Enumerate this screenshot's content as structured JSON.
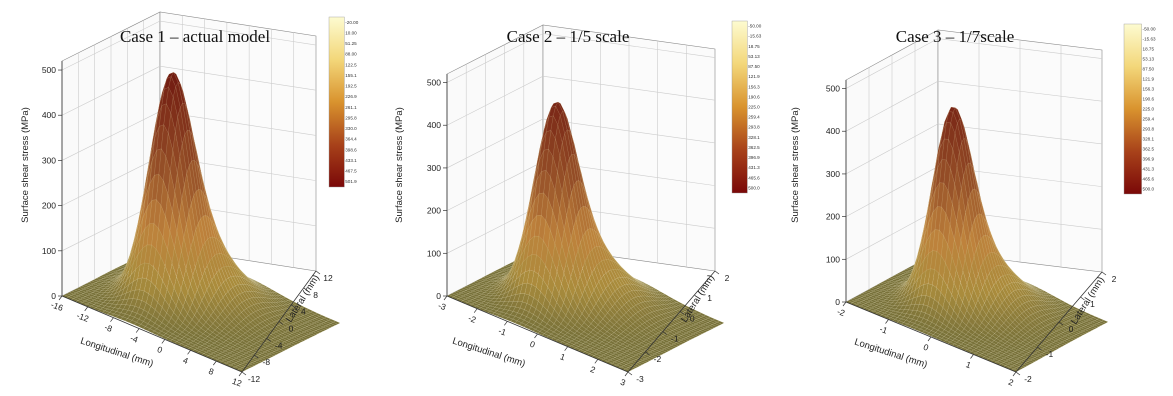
{
  "colors": {
    "floor": "#77713a",
    "peak": "#6e160f",
    "colorbar_light": "#fdfbd0",
    "colorbar_dark": "#7a0808"
  },
  "chart_data": [
    {
      "type": "surface",
      "title": "Case 1 – actual model",
      "zlabel": "Surface shear stress (MPa)",
      "xlabel": "Longitudinal (mm)",
      "ylabel": "Lateral (mm)",
      "z_ticks": [
        "0",
        "100",
        "200",
        "300",
        "400",
        "500"
      ],
      "zlim": [
        0,
        520
      ],
      "x_ticks": [
        "-16",
        "-12",
        "-8",
        "-4",
        "0",
        "4",
        "8",
        "12"
      ],
      "y_ticks": [
        "-12",
        "-8",
        "-4",
        "0",
        "4",
        "8",
        "12"
      ],
      "xlim": [
        -16,
        12
      ],
      "ylim": [
        -12,
        12
      ],
      "peak_value": 510,
      "colorbar_labels": [
        "-20.00",
        "10.00",
        "51.25",
        "88.00",
        "122.5",
        "155.1",
        "192.5",
        "226.9",
        "261.1",
        "295.8",
        "330.0",
        "364.4",
        "398.6",
        "433.1",
        "467.5",
        "501.9"
      ]
    },
    {
      "type": "surface",
      "title": "Case 2 – 1/5 scale",
      "zlabel": "Surface shear stress (MPa)",
      "xlabel": "Longitudinal (mm)",
      "ylabel": "Lateral (mm)",
      "z_ticks": [
        "0",
        "100",
        "200",
        "300",
        "400",
        "500"
      ],
      "zlim": [
        0,
        520
      ],
      "x_ticks": [
        "-3",
        "-2",
        "-1",
        "0",
        "1",
        "2",
        "3"
      ],
      "y_ticks": [
        "-3",
        "-2",
        "-1",
        "0",
        "1",
        "2"
      ],
      "xlim": [
        -3,
        3
      ],
      "ylim": [
        -3,
        2
      ],
      "peak_value": 470,
      "colorbar_labels": [
        "-50.00",
        "-15.63",
        "18.75",
        "53.13",
        "87.50",
        "121.9",
        "156.3",
        "190.6",
        "225.0",
        "259.4",
        "293.8",
        "328.1",
        "362.5",
        "396.9",
        "431.3",
        "465.6",
        "500.0"
      ]
    },
    {
      "type": "surface",
      "title": "Case 3 – 1/7scale",
      "zlabel": "Surface shear stress (MPa)",
      "xlabel": "Longitudinal (mm)",
      "ylabel": "Lateral (mm)",
      "z_ticks": [
        "0",
        "100",
        "200",
        "300",
        "400",
        "500"
      ],
      "zlim": [
        0,
        520
      ],
      "x_ticks": [
        "-2",
        "-1",
        "0",
        "1",
        "2"
      ],
      "y_ticks": [
        "-2",
        "-1",
        "0",
        "1",
        "2"
      ],
      "xlim": [
        -2,
        2
      ],
      "ylim": [
        -2,
        2
      ],
      "peak_value": 470,
      "colorbar_labels": [
        "-50.00",
        "-15.63",
        "18.75",
        "53.13",
        "87.50",
        "121.9",
        "156.3",
        "190.6",
        "225.0",
        "259.4",
        "293.8",
        "328.1",
        "362.5",
        "396.9",
        "431.3",
        "465.6",
        "500.0"
      ]
    }
  ]
}
